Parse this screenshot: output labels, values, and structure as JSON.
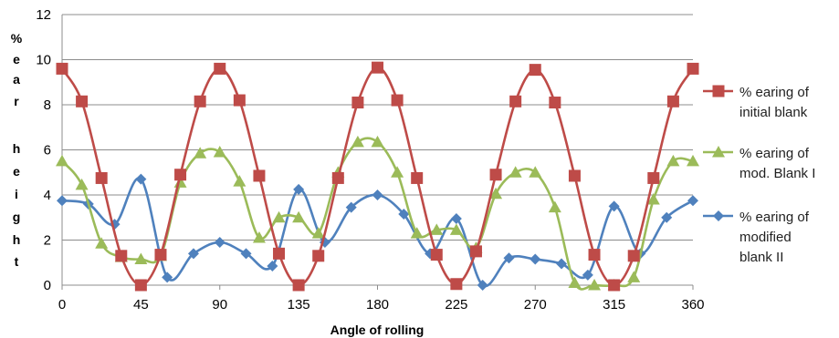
{
  "chart_data": {
    "type": "line",
    "title": "",
    "xlabel": "Angle of rolling",
    "ylabel": "% e a r h e i g h t",
    "xlim": [
      0,
      360
    ],
    "ylim": [
      0,
      12
    ],
    "x_ticks": [
      0,
      45,
      90,
      135,
      180,
      225,
      270,
      315,
      360
    ],
    "y_ticks": [
      0,
      2,
      4,
      6,
      8,
      10,
      12
    ],
    "grid": "horizontal",
    "legend_position": "right",
    "series": [
      {
        "name": "% earing of initial blank",
        "legend_lines": [
          "% earing of",
          "initial blank"
        ],
        "color": "#BE4B48",
        "marker": "square",
        "x": [
          0,
          11.25,
          22.5,
          33.75,
          45,
          56.25,
          67.5,
          78.75,
          90,
          101.25,
          112.5,
          123.75,
          135,
          146.25,
          157.5,
          168.75,
          180,
          191.25,
          202.5,
          213.75,
          225,
          236.25,
          247.5,
          258.75,
          270,
          281.25,
          292.5,
          303.75,
          315,
          326.25,
          337.5,
          348.75,
          360
        ],
        "values": [
          9.6,
          8.15,
          4.75,
          1.3,
          0.0,
          1.35,
          4.9,
          8.15,
          9.6,
          8.2,
          4.85,
          1.4,
          0.0,
          1.3,
          4.75,
          8.1,
          9.65,
          8.2,
          4.75,
          1.35,
          0.05,
          1.5,
          4.9,
          8.15,
          9.55,
          8.1,
          4.85,
          1.35,
          0.0,
          1.3,
          4.75,
          8.15,
          9.6
        ]
      },
      {
        "name": "% earing of mod. Blank I",
        "legend_lines": [
          "% earing of",
          "mod. Blank I"
        ],
        "color": "#9BBB59",
        "marker": "triangle",
        "x": [
          0,
          11.25,
          22.5,
          33.75,
          45,
          56.25,
          67.5,
          78.75,
          90,
          101.25,
          112.5,
          123.75,
          135,
          146.25,
          157.5,
          168.75,
          180,
          191.25,
          202.5,
          213.75,
          225,
          236.25,
          247.5,
          258.75,
          270,
          281.25,
          292.5,
          303.75,
          315,
          326.25,
          337.5,
          348.75,
          360
        ],
        "values": [
          5.5,
          4.45,
          1.85,
          1.25,
          1.15,
          1.3,
          4.55,
          5.85,
          5.9,
          4.6,
          2.1,
          3.0,
          3.0,
          2.3,
          5.0,
          6.35,
          6.35,
          5.0,
          2.3,
          2.45,
          2.45,
          1.65,
          4.05,
          5.0,
          5.0,
          3.45,
          0.1,
          0.0,
          0.0,
          0.35,
          3.8,
          5.5,
          5.5
        ]
      },
      {
        "name": "% earing of modified blank II",
        "legend_lines": [
          "% earing of",
          "modified",
          "blank II"
        ],
        "color": "#4F81BD",
        "marker": "diamond",
        "x": [
          0,
          15,
          30,
          45,
          60,
          75,
          90,
          105,
          120,
          135,
          150,
          165,
          180,
          195,
          210,
          225,
          240,
          255,
          270,
          285,
          300,
          315,
          330,
          345,
          360
        ],
        "values": [
          3.75,
          3.6,
          2.7,
          4.7,
          0.35,
          1.4,
          1.9,
          1.4,
          0.85,
          4.25,
          1.9,
          3.45,
          4.0,
          3.15,
          1.4,
          2.95,
          0.0,
          1.2,
          1.15,
          0.95,
          0.45,
          3.5,
          1.4,
          3.0,
          3.75
        ]
      }
    ]
  }
}
